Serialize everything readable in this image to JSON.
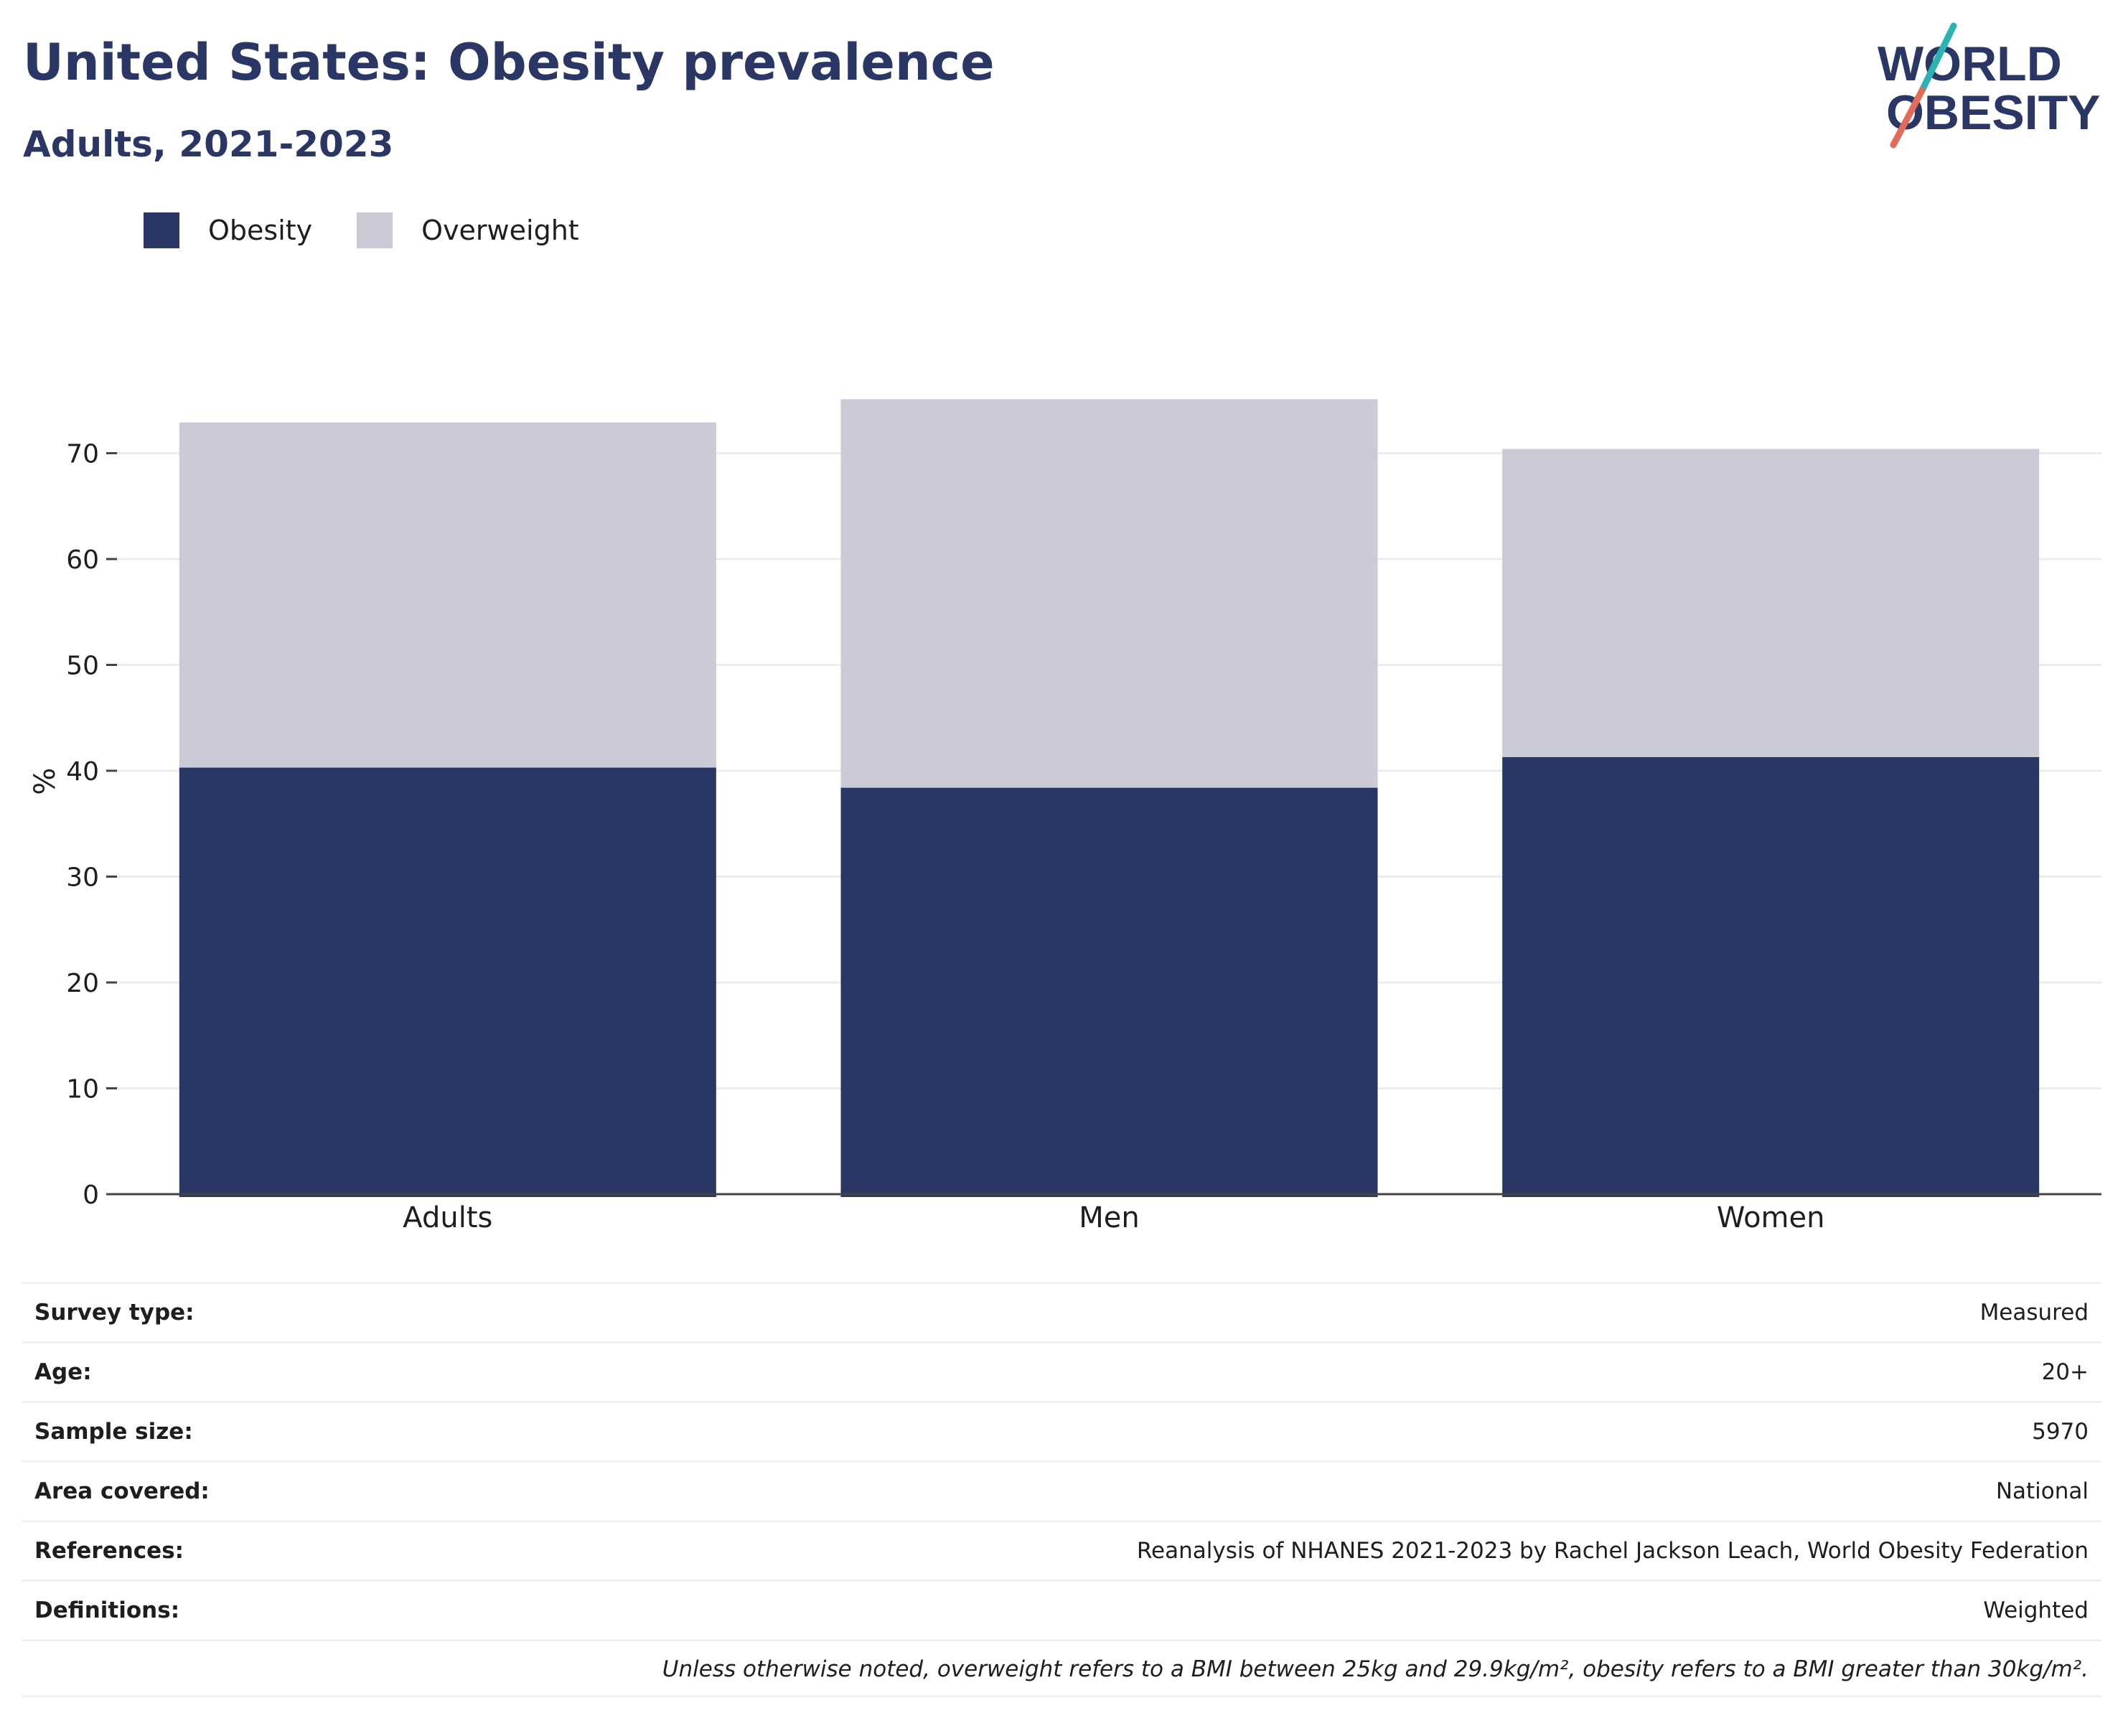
{
  "header": {
    "title": "United States: Obesity prevalence",
    "subtitle": "Adults, 2021-2023"
  },
  "logo": {
    "line1": "WORLD",
    "line2": "OBESITY"
  },
  "colors": {
    "obesity": "#2a3664",
    "overweight": "#cacbd6",
    "logo_teal": "#2bb3b1",
    "logo_coral": "#e36b5a",
    "grid": "#ececec",
    "axis": "#444444"
  },
  "chart_data": {
    "type": "bar",
    "stacked": true,
    "categories": [
      "Adults",
      "Men",
      "Women"
    ],
    "series": [
      {
        "name": "Obesity",
        "values": [
          40.3,
          38.4,
          41.3
        ]
      },
      {
        "name": "Overweight",
        "values": [
          32.6,
          36.7,
          29.1
        ]
      }
    ],
    "ylabel": "%",
    "xlabel": "",
    "ylim": [
      0,
      78
    ],
    "yticks": [
      0,
      10,
      20,
      30,
      40,
      50,
      60,
      70
    ],
    "grid": true,
    "legend": "top-left"
  },
  "info": {
    "rows": [
      {
        "label": "Survey type:",
        "value": "Measured"
      },
      {
        "label": "Age:",
        "value": "20+"
      },
      {
        "label": "Sample size:",
        "value": "5970"
      },
      {
        "label": "Area covered:",
        "value": "National"
      },
      {
        "label": "References:",
        "value": "Reanalysis of NHANES 2021-2023 by Rachel Jackson Leach, World Obesity Federation"
      },
      {
        "label": "Definitions:",
        "value": "Weighted"
      }
    ],
    "footnote": "Unless otherwise noted, overweight refers to a BMI between 25kg and 29.9kg/m², obesity refers to a BMI greater than 30kg/m²."
  }
}
